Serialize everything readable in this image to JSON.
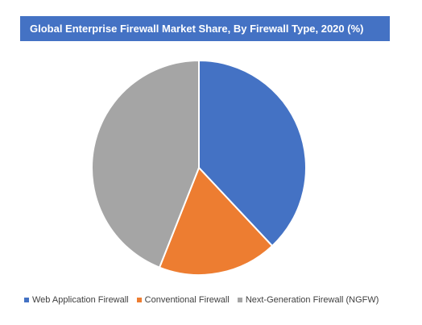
{
  "chart_data": {
    "type": "pie",
    "title": "Global Enterprise Firewall Market Share, By Firewall Type, 2020 (%)",
    "categories": [
      "Web Application Firewall",
      "Conventional Firewall",
      "Next-Generation Firewall (NGFW)"
    ],
    "values": [
      38,
      18,
      44
    ],
    "colors": [
      "#4472c4",
      "#ed7d31",
      "#a5a5a5"
    ],
    "legend_position": "bottom"
  }
}
